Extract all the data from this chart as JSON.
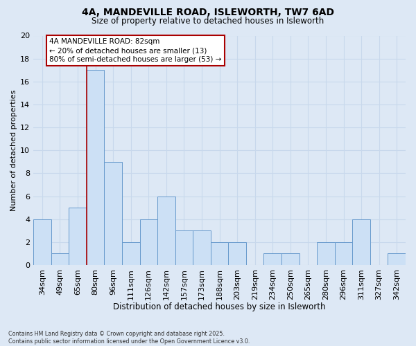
{
  "title": "4A, MANDEVILLE ROAD, ISLEWORTH, TW7 6AD",
  "subtitle": "Size of property relative to detached houses in Isleworth",
  "xlabel": "Distribution of detached houses by size in Isleworth",
  "ylabel": "Number of detached properties",
  "categories": [
    "34sqm",
    "49sqm",
    "65sqm",
    "80sqm",
    "96sqm",
    "111sqm",
    "126sqm",
    "142sqm",
    "157sqm",
    "173sqm",
    "188sqm",
    "203sqm",
    "219sqm",
    "234sqm",
    "250sqm",
    "265sqm",
    "280sqm",
    "296sqm",
    "311sqm",
    "327sqm",
    "342sqm"
  ],
  "values": [
    4,
    1,
    5,
    17,
    9,
    2,
    4,
    6,
    3,
    3,
    2,
    2,
    0,
    1,
    1,
    0,
    2,
    2,
    4,
    0,
    1
  ],
  "bar_color": "#cce0f5",
  "bar_edge_color": "#6699cc",
  "vline_x_index": 3,
  "vline_color": "#aa0000",
  "annotation_text": "4A MANDEVILLE ROAD: 82sqm\n← 20% of detached houses are smaller (13)\n80% of semi-detached houses are larger (53) →",
  "annotation_box_color": "#ffffff",
  "annotation_box_edge": "#aa0000",
  "ylim": [
    0,
    20
  ],
  "yticks": [
    0,
    2,
    4,
    6,
    8,
    10,
    12,
    14,
    16,
    18,
    20
  ],
  "grid_color": "#c8d8ec",
  "background_color": "#dde8f5",
  "footer": "Contains HM Land Registry data © Crown copyright and database right 2025.\nContains public sector information licensed under the Open Government Licence v3.0."
}
